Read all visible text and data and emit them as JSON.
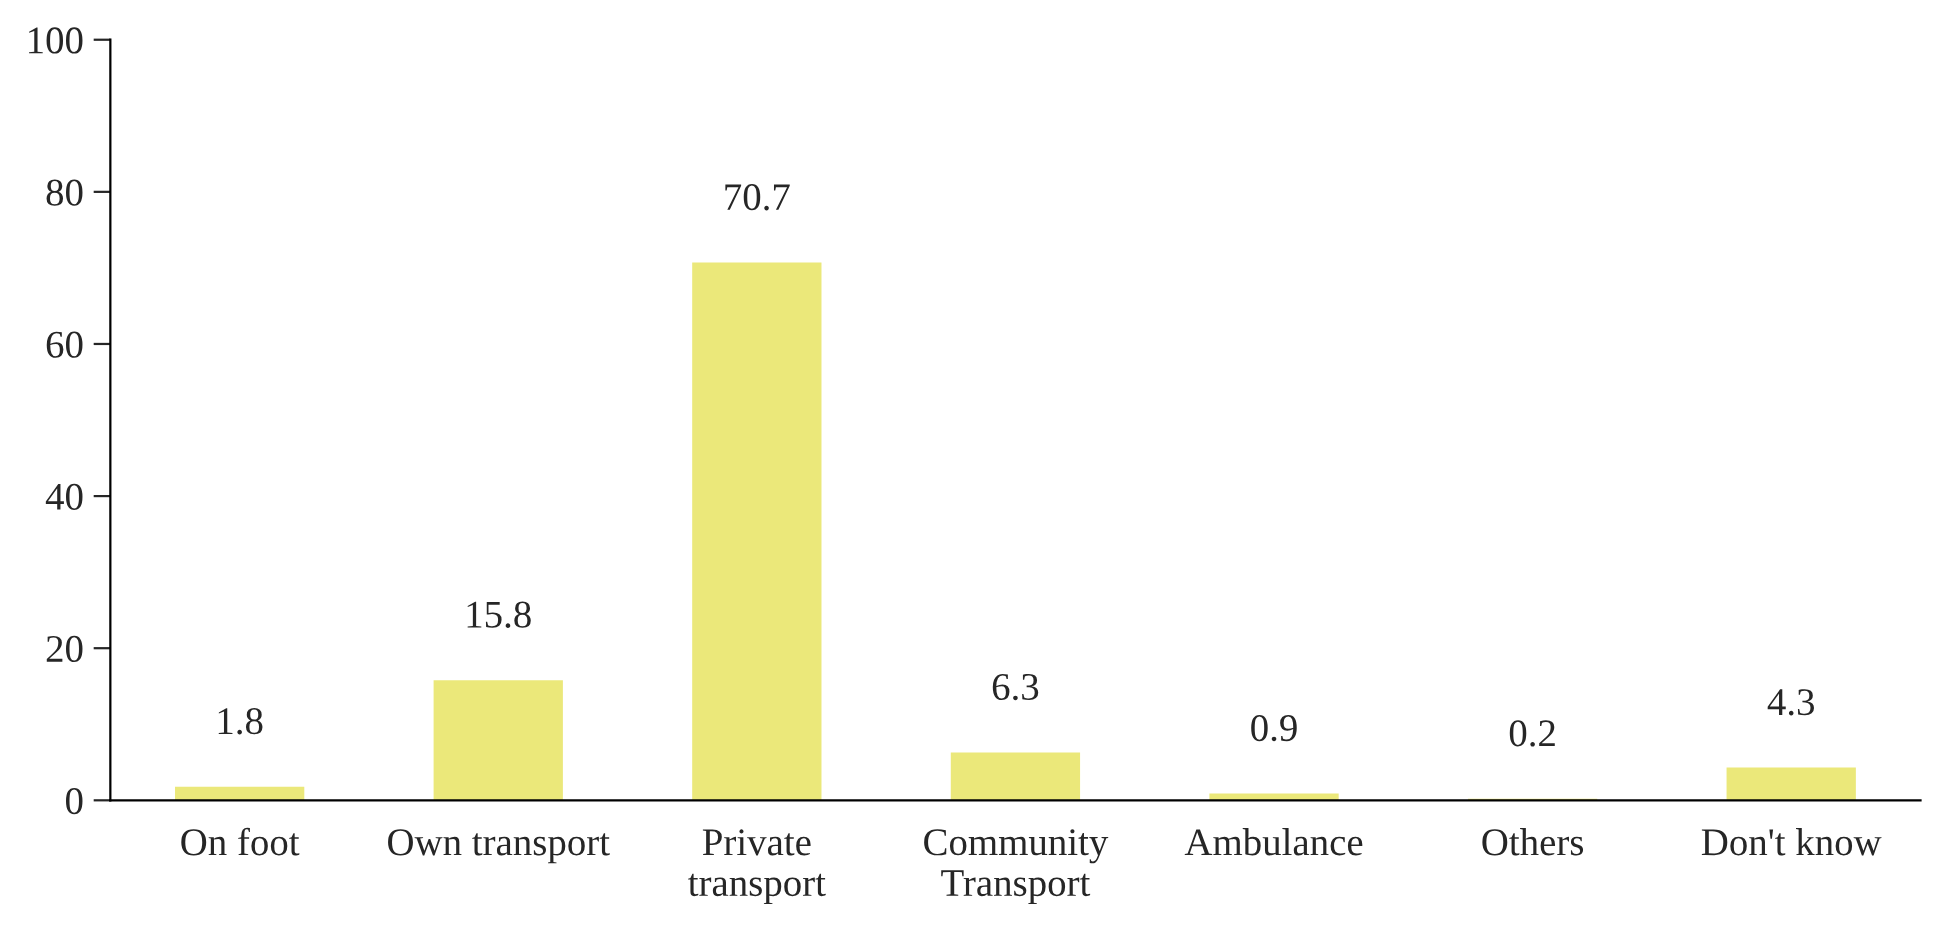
{
  "chart_data": {
    "type": "bar",
    "categories": [
      "On foot",
      "Own transport",
      "Private\ntransport",
      "Community\nTransport",
      "Ambulance",
      "Others",
      "Don't know"
    ],
    "values": [
      1.8,
      15.8,
      70.7,
      6.3,
      0.9,
      0.2,
      4.3
    ],
    "color": "#ebe87a",
    "ylim": [
      0,
      100
    ],
    "yticks": [
      0,
      20,
      40,
      60,
      80,
      100
    ],
    "data_labels": true,
    "grid": false,
    "legend": false
  }
}
